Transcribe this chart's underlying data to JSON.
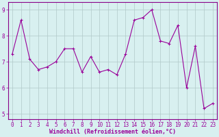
{
  "x": [
    0,
    1,
    2,
    3,
    4,
    5,
    6,
    7,
    8,
    9,
    10,
    11,
    12,
    13,
    14,
    15,
    16,
    17,
    18,
    19,
    20,
    21,
    22,
    23
  ],
  "y": [
    7.3,
    8.6,
    7.1,
    6.7,
    6.8,
    7.0,
    7.5,
    7.5,
    6.6,
    7.2,
    6.6,
    6.7,
    6.5,
    7.3,
    8.6,
    8.7,
    9.0,
    7.8,
    7.7,
    8.4,
    6.0,
    7.6,
    5.2,
    5.4
  ],
  "line_color": "#990099",
  "marker": "+",
  "marker_size": 3,
  "bg_color": "#d8f0f0",
  "grid_color": "#b0c8c8",
  "tick_color": "#990099",
  "label_color": "#990099",
  "xlabel": "Windchill (Refroidissement éolien,°C)",
  "ylim": [
    4.8,
    9.3
  ],
  "xlim": [
    -0.5,
    23.5
  ],
  "yticks": [
    5,
    6,
    7,
    8,
    9
  ],
  "xticks": [
    0,
    1,
    2,
    3,
    4,
    5,
    6,
    7,
    8,
    9,
    10,
    11,
    12,
    13,
    14,
    15,
    16,
    17,
    18,
    19,
    20,
    21,
    22,
    23
  ],
  "tick_fontsize": 5.5,
  "xlabel_fontsize": 6.0,
  "spine_color": "#880088"
}
